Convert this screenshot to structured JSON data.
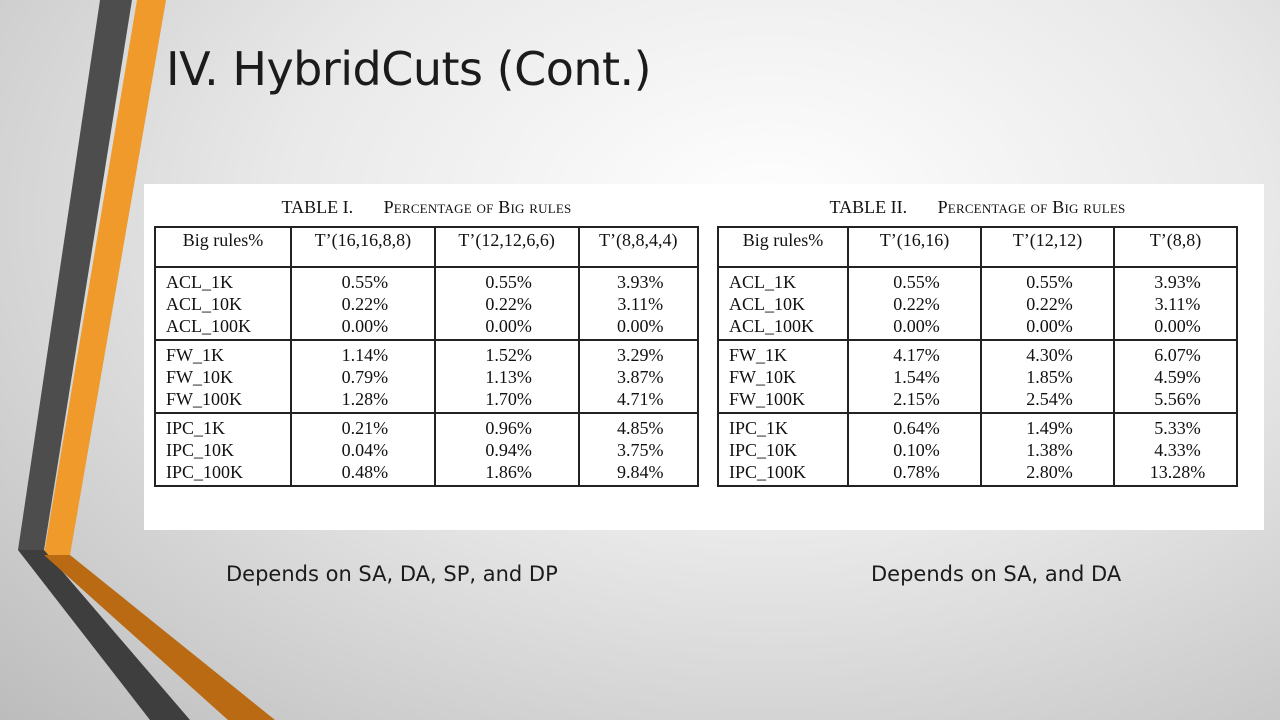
{
  "slide": {
    "title": "IV. HybridCuts (Cont.)",
    "accent_colors": {
      "orange": "#ef9a2a",
      "dark_orange": "#b96a12",
      "charcoal": "#4a4a4a"
    }
  },
  "table1": {
    "caption_number": "TABLE I.",
    "caption_text": "Percentage of Big rules",
    "headers": [
      "Big rules%",
      "T’(16,16,8,8)",
      "T’(12,12,6,6)",
      "T’(8,8,4,4)"
    ],
    "groups": [
      {
        "rows": [
          "ACL_1K",
          "ACL_10K",
          "ACL_100K"
        ],
        "columns": [
          [
            "0.55%",
            "0.22%",
            "0.00%"
          ],
          [
            "0.55%",
            "0.22%",
            "0.00%"
          ],
          [
            "3.93%",
            "3.11%",
            "0.00%"
          ]
        ]
      },
      {
        "rows": [
          "FW_1K",
          "FW_10K",
          "FW_100K"
        ],
        "columns": [
          [
            "1.14%",
            "0.79%",
            "1.28%"
          ],
          [
            "1.52%",
            "1.13%",
            "1.70%"
          ],
          [
            "3.29%",
            "3.87%",
            "4.71%"
          ]
        ]
      },
      {
        "rows": [
          "IPC_1K",
          "IPC_10K",
          "IPC_100K"
        ],
        "columns": [
          [
            "0.21%",
            "0.04%",
            "0.48%"
          ],
          [
            "0.96%",
            "0.94%",
            "1.86%"
          ],
          [
            "4.85%",
            "3.75%",
            "9.84%"
          ]
        ]
      }
    ]
  },
  "table2": {
    "caption_number": "TABLE II.",
    "caption_text": "Percentage of Big rules",
    "headers": [
      "Big rules%",
      "T’(16,16)",
      "T’(12,12)",
      "T’(8,8)"
    ],
    "groups": [
      {
        "rows": [
          "ACL_1K",
          "ACL_10K",
          "ACL_100K"
        ],
        "columns": [
          [
            "0.55%",
            "0.22%",
            "0.00%"
          ],
          [
            "0.55%",
            "0.22%",
            "0.00%"
          ],
          [
            "3.93%",
            "3.11%",
            "0.00%"
          ]
        ]
      },
      {
        "rows": [
          "FW_1K",
          "FW_10K",
          "FW_100K"
        ],
        "columns": [
          [
            "4.17%",
            "1.54%",
            "2.15%"
          ],
          [
            "4.30%",
            "1.85%",
            "2.54%"
          ],
          [
            "6.07%",
            "4.59%",
            "5.56%"
          ]
        ]
      },
      {
        "rows": [
          "IPC_1K",
          "IPC_10K",
          "IPC_100K"
        ],
        "columns": [
          [
            "0.64%",
            "0.10%",
            "0.78%"
          ],
          [
            "1.49%",
            "1.38%",
            "2.80%"
          ],
          [
            "5.33%",
            "4.33%",
            "13.28%"
          ]
        ]
      }
    ]
  },
  "notes": {
    "left": "Depends on SA, DA, SP, and DP",
    "right": "Depends on SA, and DA"
  }
}
